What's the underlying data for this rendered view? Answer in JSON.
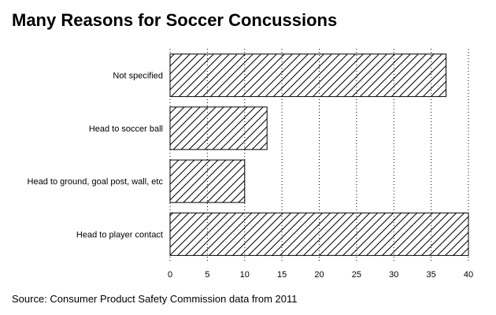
{
  "chart_data": {
    "type": "bar",
    "orientation": "horizontal",
    "title": "Many Reasons for Soccer Concussions",
    "categories": [
      "Not specified",
      "Head to soccer ball",
      "Head to ground, goal post, wall, etc",
      "Head to player contact"
    ],
    "values": [
      37,
      13,
      10,
      40
    ],
    "xlim": [
      0,
      40
    ],
    "xticks": [
      0,
      5,
      10,
      15,
      20,
      25,
      30,
      35,
      40
    ],
    "grid": true,
    "bar_fill": "diagonal-hatch",
    "xlabel": "",
    "ylabel": ""
  },
  "source_text": "Source: Consumer Product Safety Commission data from 2011"
}
